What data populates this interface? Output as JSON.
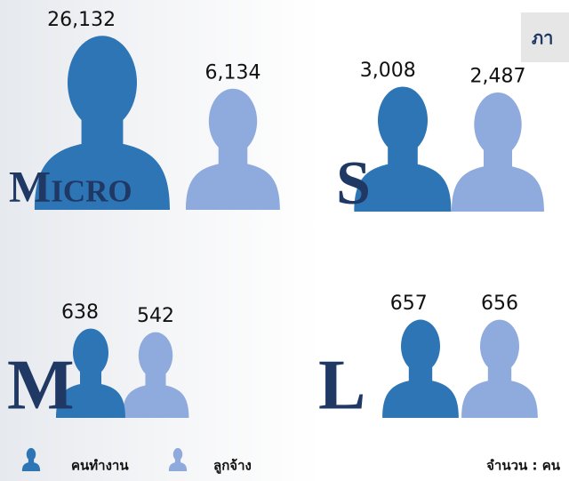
{
  "chart_data": {
    "type": "pictograph",
    "title": "ภา",
    "unit_label": "จำนวน : คน",
    "categories": [
      "Micro",
      "S",
      "M",
      "L"
    ],
    "series": [
      {
        "name": "คนทำงาน",
        "color": "#2e75b6",
        "values": [
          26132,
          3008,
          638,
          657
        ],
        "value_labels": [
          "26,132",
          "3,008",
          "638",
          "657"
        ]
      },
      {
        "name": "ลูกจ้าง",
        "color": "#8faadc",
        "values": [
          6134,
          2487,
          542,
          656
        ],
        "value_labels": [
          "6,134",
          "2,487",
          "542",
          "656"
        ]
      }
    ]
  }
}
